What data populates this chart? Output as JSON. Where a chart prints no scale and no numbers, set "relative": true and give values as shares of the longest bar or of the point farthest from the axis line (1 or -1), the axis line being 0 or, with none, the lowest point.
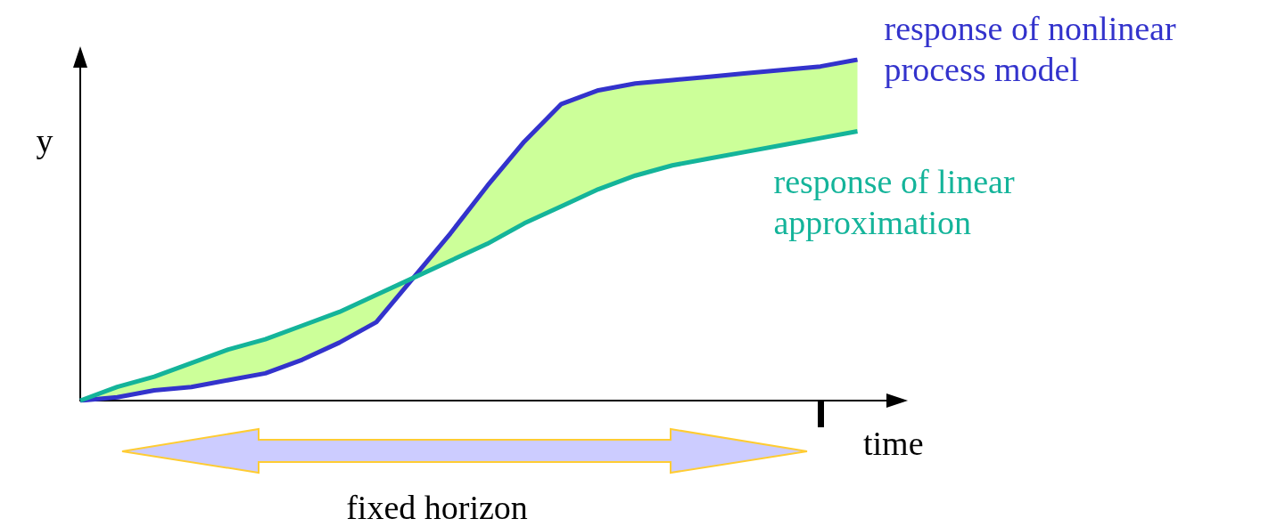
{
  "chart_data": {
    "type": "line",
    "relative": true,
    "xlabel": "time",
    "ylabel": "y",
    "marker": "none",
    "categories": [
      null,
      null,
      null,
      null,
      null,
      null,
      null,
      null,
      null,
      null,
      null,
      null,
      null,
      null,
      null,
      null,
      null,
      null,
      null,
      null,
      null,
      null,
      null
    ],
    "series": [
      {
        "name": "response of nonlinear process model",
        "color": "#3333cc",
        "values": [
          0,
          0.01,
          0.03,
          0.04,
          0.06,
          0.08,
          0.12,
          0.17,
          0.23,
          0.36,
          0.49,
          0.63,
          0.76,
          0.87,
          0.91,
          0.93,
          0.94,
          0.95,
          0.96,
          0.97,
          0.98,
          1,
          null
        ],
        "lower": [
          0,
          0.01,
          0.03,
          0.04,
          0.06,
          0.08,
          0.12,
          0.17,
          0.23,
          0.36,
          0.41,
          0.46,
          0.52,
          0.57,
          0.62,
          0.66,
          0.69,
          0.71,
          0.73,
          0.75,
          0.77,
          0.79,
          null
        ],
        "upper": [
          0,
          0.04,
          0.07,
          0.11,
          0.15,
          0.18,
          0.22,
          0.26,
          0.31,
          0.36,
          0.49,
          0.63,
          0.76,
          0.87,
          0.91,
          0.93,
          0.94,
          0.95,
          0.96,
          0.97,
          0.98,
          1,
          null
        ]
      },
      {
        "name": "response of linear approximation",
        "color": "#14b49a",
        "values": [
          0,
          0.04,
          0.07,
          0.11,
          0.15,
          0.18,
          0.22,
          0.26,
          0.31,
          0.36,
          0.41,
          0.46,
          0.52,
          0.57,
          0.62,
          0.66,
          0.69,
          0.71,
          0.73,
          0.75,
          0.77,
          0.79,
          null
        ]
      }
    ],
    "annotations": [
      "fixed horizon"
    ]
  }
}
